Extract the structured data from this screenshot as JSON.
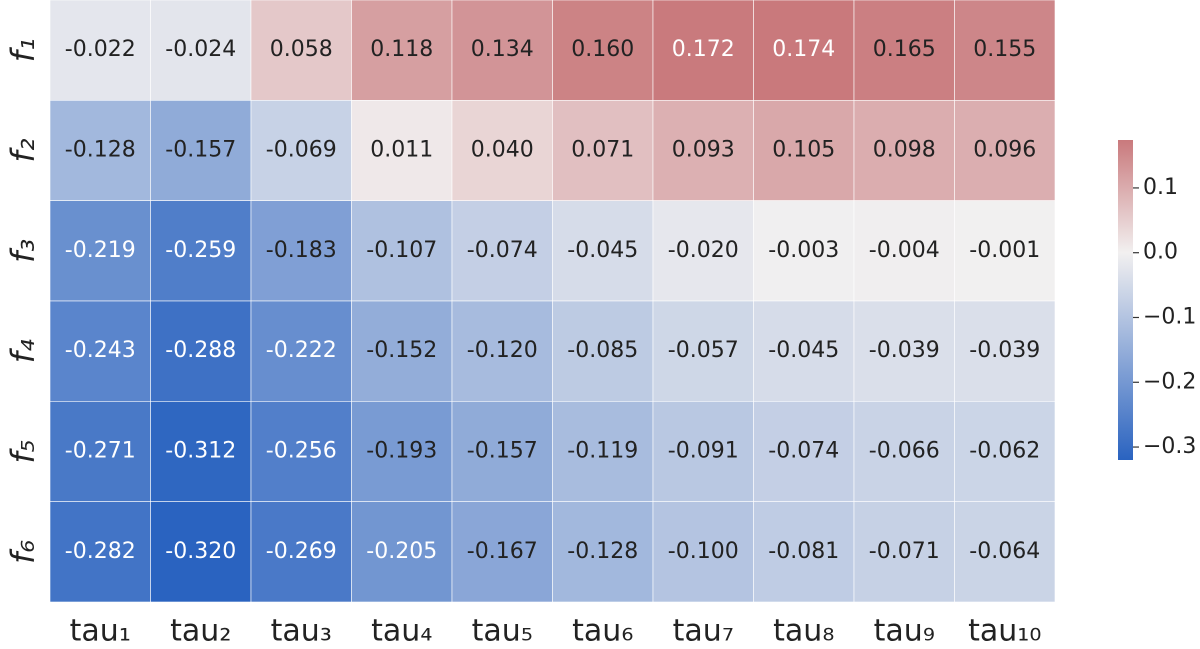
{
  "chart_data": {
    "type": "heatmap",
    "x_categories": [
      "tau₁",
      "tau₂",
      "tau₃",
      "tau₄",
      "tau₅",
      "tau₆",
      "tau₇",
      "tau₈",
      "tau₉",
      "tau₁₀"
    ],
    "y_categories": [
      "f₁",
      "f₂",
      "f₃",
      "f₄",
      "f₅",
      "f₆"
    ],
    "values": [
      [
        -0.022,
        -0.024,
        0.058,
        0.118,
        0.134,
        0.16,
        0.172,
        0.174,
        0.165,
        0.155
      ],
      [
        -0.128,
        -0.157,
        -0.069,
        0.011,
        0.04,
        0.071,
        0.093,
        0.105,
        0.098,
        0.096
      ],
      [
        -0.219,
        -0.259,
        -0.183,
        -0.107,
        -0.074,
        -0.045,
        -0.02,
        -0.003,
        -0.004,
        -0.001
      ],
      [
        -0.243,
        -0.288,
        -0.222,
        -0.152,
        -0.12,
        -0.085,
        -0.057,
        -0.045,
        -0.039,
        -0.039
      ],
      [
        -0.271,
        -0.312,
        -0.256,
        -0.193,
        -0.157,
        -0.119,
        -0.091,
        -0.074,
        -0.066,
        -0.062
      ],
      [
        -0.282,
        -0.32,
        -0.269,
        -0.205,
        -0.167,
        -0.128,
        -0.1,
        -0.081,
        -0.071,
        -0.064
      ]
    ],
    "value_labels": [
      [
        "-0.022",
        "-0.024",
        "0.058",
        "0.118",
        "0.134",
        "0.160",
        "0.172",
        "0.174",
        "0.165",
        "0.155"
      ],
      [
        "-0.128",
        "-0.157",
        "-0.069",
        "0.011",
        "0.040",
        "0.071",
        "0.093",
        "0.105",
        "0.098",
        "0.096"
      ],
      [
        "-0.219",
        "-0.259",
        "-0.183",
        "-0.107",
        "-0.074",
        "-0.045",
        "-0.020",
        "-0.003",
        "-0.004",
        "-0.001"
      ],
      [
        "-0.243",
        "-0.288",
        "-0.222",
        "-0.152",
        "-0.120",
        "-0.085",
        "-0.057",
        "-0.045",
        "-0.039",
        "-0.039"
      ],
      [
        "-0.271",
        "-0.312",
        "-0.256",
        "-0.193",
        "-0.157",
        "-0.119",
        "-0.091",
        "-0.074",
        "-0.066",
        "-0.062"
      ],
      [
        "-0.282",
        "-0.320",
        "-0.269",
        "-0.205",
        "-0.167",
        "-0.128",
        "-0.100",
        "-0.081",
        "-0.071",
        "-0.064"
      ]
    ],
    "colors": [
      "#2a63c0",
      "#f2f0f0",
      "#c9797c"
    ],
    "center": 0,
    "clim": [
      -0.32,
      0.174
    ],
    "cbar_ticks": [
      {
        "value": 0.1,
        "label": "0.1"
      },
      {
        "value": 0.0,
        "label": "0.0"
      },
      {
        "value": -0.1,
        "label": "−0.1"
      },
      {
        "value": -0.2,
        "label": "−0.2"
      },
      {
        "value": -0.3,
        "label": "−0.3"
      }
    ]
  }
}
